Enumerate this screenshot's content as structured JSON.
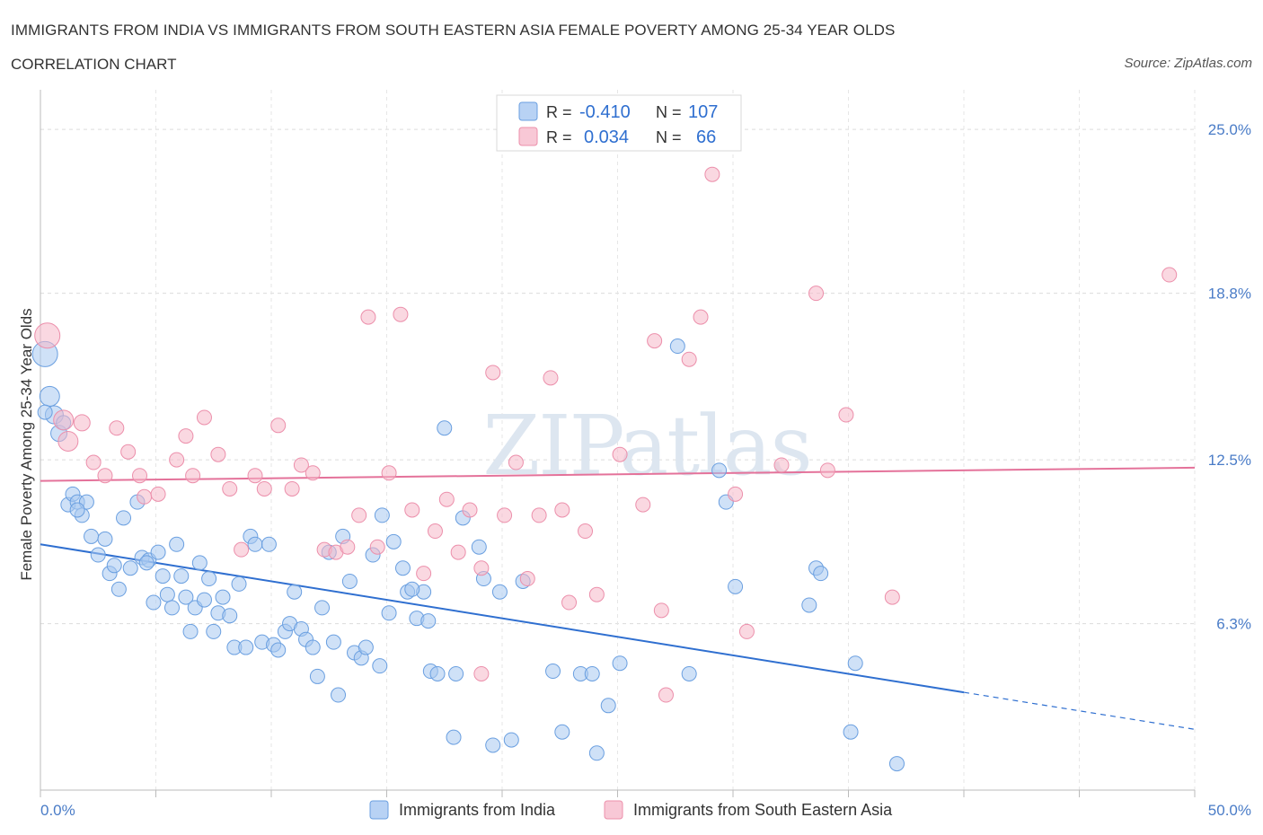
{
  "title": "IMMIGRANTS FROM INDIA VS IMMIGRANTS FROM SOUTH EASTERN ASIA FEMALE POVERTY AMONG 25-34 YEAR OLDS",
  "subtitle": "CORRELATION CHART",
  "source": "Source: ZipAtlas.com",
  "watermark": "ZIPatlas",
  "legend": {
    "rows": [
      {
        "r_label": "R =",
        "r_value": "-0.410",
        "n_label": "N =",
        "n_value": "107",
        "color": "#a8c8f0"
      },
      {
        "r_label": "R =",
        "r_value": "0.034",
        "n_label": "N =",
        "n_value": "66",
        "color": "#f5b8c8"
      }
    ]
  },
  "bottom_legend": [
    "Immigrants from India",
    "Immigrants from South Eastern Asia"
  ],
  "chart_data": {
    "type": "scatter",
    "title": "IMMIGRANTS FROM INDIA VS IMMIGRANTS FROM SOUTH EASTERN ASIA FEMALE POVERTY AMONG 25-34 YEAR OLDS",
    "xlabel": "",
    "ylabel": "Female Poverty Among 25-34 Year Olds",
    "xlim": [
      0,
      50
    ],
    "ylim": [
      0,
      26.5
    ],
    "x_tick_labels": [
      "0.0%",
      "50.0%"
    ],
    "y_ticks": [
      6.3,
      12.5,
      18.8,
      25.0
    ],
    "y_tick_labels": [
      "6.3%",
      "12.5%",
      "18.8%",
      "25.0%"
    ],
    "grid": true,
    "series": [
      {
        "name": "Immigrants from India",
        "color": "#a8c8f0",
        "stroke": "#6a9fe0",
        "trend": {
          "x0": 0,
          "y0": 9.3,
          "x1": 40,
          "y1": 3.7,
          "dash_to_x": 50,
          "dash_to_y": 2.3,
          "color": "#2f6fd0"
        },
        "points": [
          [
            0.2,
            16.5,
            14
          ],
          [
            0.4,
            14.9,
            11
          ],
          [
            0.6,
            14.2,
            10
          ],
          [
            0.8,
            13.5,
            9
          ],
          [
            1,
            13.9,
            8
          ],
          [
            1.2,
            10.8,
            8
          ],
          [
            1.4,
            11.2,
            8
          ],
          [
            1.6,
            10.9,
            8
          ],
          [
            1.8,
            10.4,
            8
          ],
          [
            2.0,
            10.9,
            8
          ],
          [
            2.2,
            9.6,
            8
          ],
          [
            2.5,
            8.9,
            8
          ],
          [
            2.8,
            9.5,
            8
          ],
          [
            3,
            8.2,
            8
          ],
          [
            3.2,
            8.5,
            8
          ],
          [
            3.4,
            7.6,
            8
          ],
          [
            3.6,
            10.3,
            8
          ],
          [
            3.9,
            8.4,
            8
          ],
          [
            4.2,
            10.9,
            8
          ],
          [
            4.4,
            8.8,
            8
          ],
          [
            4.7,
            8.7,
            8
          ],
          [
            4.9,
            7.1,
            8
          ],
          [
            5.1,
            9.0,
            8
          ],
          [
            5.3,
            8.1,
            8
          ],
          [
            5.5,
            7.4,
            8
          ],
          [
            5.7,
            6.9,
            8
          ],
          [
            5.9,
            9.3,
            8
          ],
          [
            6.1,
            8.1,
            8
          ],
          [
            6.3,
            7.3,
            8
          ],
          [
            6.5,
            6.0,
            8
          ],
          [
            6.7,
            6.9,
            8
          ],
          [
            6.9,
            8.6,
            8
          ],
          [
            7.1,
            7.2,
            8
          ],
          [
            7.3,
            8.0,
            8
          ],
          [
            7.5,
            6.0,
            8
          ],
          [
            7.7,
            6.7,
            8
          ],
          [
            7.9,
            7.3,
            8
          ],
          [
            8.2,
            6.6,
            8
          ],
          [
            8.4,
            5.4,
            8
          ],
          [
            8.6,
            7.8,
            8
          ],
          [
            8.9,
            5.4,
            8
          ],
          [
            9.1,
            9.6,
            8
          ],
          [
            9.3,
            9.3,
            8
          ],
          [
            9.6,
            5.6,
            8
          ],
          [
            9.9,
            9.3,
            8
          ],
          [
            10.1,
            5.5,
            8
          ],
          [
            10.3,
            5.3,
            8
          ],
          [
            10.6,
            6.0,
            8
          ],
          [
            10.8,
            6.3,
            8
          ],
          [
            11.0,
            7.5,
            8
          ],
          [
            11.3,
            6.1,
            8
          ],
          [
            11.5,
            5.7,
            8
          ],
          [
            11.8,
            5.4,
            8
          ],
          [
            12.0,
            4.3,
            8
          ],
          [
            12.2,
            6.9,
            8
          ],
          [
            12.5,
            9.0,
            8
          ],
          [
            12.7,
            5.6,
            8
          ],
          [
            12.9,
            3.6,
            8
          ],
          [
            13.1,
            9.6,
            8
          ],
          [
            13.4,
            7.9,
            8
          ],
          [
            13.6,
            5.2,
            8
          ],
          [
            13.9,
            5.0,
            8
          ],
          [
            14.1,
            5.4,
            8
          ],
          [
            14.4,
            8.9,
            8
          ],
          [
            14.7,
            4.7,
            8
          ],
          [
            14.8,
            10.4,
            8
          ],
          [
            15.1,
            6.7,
            8
          ],
          [
            15.3,
            9.4,
            8
          ],
          [
            15.7,
            8.4,
            8
          ],
          [
            15.9,
            7.5,
            8
          ],
          [
            16.3,
            6.5,
            8
          ],
          [
            16.6,
            7.5,
            8
          ],
          [
            16.8,
            6.4,
            8
          ],
          [
            16.9,
            4.5,
            8
          ],
          [
            17.2,
            4.4,
            8
          ],
          [
            17.5,
            13.7,
            8
          ],
          [
            17.9,
            2.0,
            8
          ],
          [
            18.0,
            4.4,
            8
          ],
          [
            18.3,
            10.3,
            8
          ],
          [
            19.0,
            9.2,
            8
          ],
          [
            19.2,
            8.0,
            8
          ],
          [
            19.6,
            1.7,
            8
          ],
          [
            19.9,
            7.5,
            8
          ],
          [
            20.4,
            1.9,
            8
          ],
          [
            20.9,
            7.9,
            8
          ],
          [
            22.2,
            4.5,
            8
          ],
          [
            22.6,
            2.2,
            8
          ],
          [
            23.4,
            4.4,
            8
          ],
          [
            23.9,
            4.4,
            8
          ],
          [
            24.1,
            1.4,
            8
          ],
          [
            24.6,
            3.2,
            8
          ],
          [
            25.1,
            4.8,
            8
          ],
          [
            27.6,
            16.8,
            8
          ],
          [
            28.1,
            4.4,
            8
          ],
          [
            29.4,
            12.1,
            8
          ],
          [
            29.7,
            10.9,
            8
          ],
          [
            30.1,
            7.7,
            8
          ],
          [
            33.3,
            7.0,
            8
          ],
          [
            33.6,
            8.4,
            8
          ],
          [
            33.8,
            8.2,
            8
          ],
          [
            35.3,
            4.8,
            8
          ],
          [
            35.1,
            2.2,
            8
          ],
          [
            37.1,
            1.0,
            8
          ],
          [
            0.2,
            14.3,
            8
          ],
          [
            1.6,
            10.6,
            8
          ],
          [
            4.6,
            8.6,
            8
          ],
          [
            16.1,
            7.6,
            8
          ]
        ]
      },
      {
        "name": "Immigrants from South Eastern Asia",
        "color": "#f5b8c8",
        "stroke": "#ec8fab",
        "trend": {
          "x0": 0,
          "y0": 11.7,
          "x1": 50,
          "y1": 12.2,
          "color": "#e4729a"
        },
        "points": [
          [
            0.3,
            17.2,
            14
          ],
          [
            1.0,
            14.0,
            11
          ],
          [
            1.2,
            13.2,
            11
          ],
          [
            1.8,
            13.9,
            9
          ],
          [
            2.3,
            12.4,
            8
          ],
          [
            2.8,
            11.9,
            8
          ],
          [
            3.3,
            13.7,
            8
          ],
          [
            3.8,
            12.8,
            8
          ],
          [
            4.3,
            11.9,
            8
          ],
          [
            4.5,
            11.1,
            8
          ],
          [
            5.1,
            11.2,
            8
          ],
          [
            5.9,
            12.5,
            8
          ],
          [
            6.3,
            13.4,
            8
          ],
          [
            6.6,
            11.9,
            8
          ],
          [
            7.1,
            14.1,
            8
          ],
          [
            7.7,
            12.7,
            8
          ],
          [
            8.2,
            11.4,
            8
          ],
          [
            8.7,
            9.1,
            8
          ],
          [
            9.3,
            11.9,
            8
          ],
          [
            9.7,
            11.4,
            8
          ],
          [
            10.3,
            13.8,
            8
          ],
          [
            10.9,
            11.4,
            8
          ],
          [
            11.3,
            12.3,
            8
          ],
          [
            11.8,
            12.0,
            8
          ],
          [
            12.3,
            9.1,
            8
          ],
          [
            12.8,
            9.0,
            8
          ],
          [
            13.3,
            9.2,
            8
          ],
          [
            13.8,
            10.4,
            8
          ],
          [
            14.2,
            17.9,
            8
          ],
          [
            14.6,
            9.2,
            8
          ],
          [
            15.1,
            12.0,
            8
          ],
          [
            15.6,
            18.0,
            8
          ],
          [
            16.1,
            10.6,
            8
          ],
          [
            16.6,
            8.2,
            8
          ],
          [
            17.1,
            9.8,
            8
          ],
          [
            17.6,
            11.0,
            8
          ],
          [
            18.1,
            9.0,
            8
          ],
          [
            18.6,
            10.6,
            8
          ],
          [
            19.1,
            8.4,
            8
          ],
          [
            19.6,
            15.8,
            8
          ],
          [
            20.1,
            10.4,
            8
          ],
          [
            20.6,
            12.4,
            8
          ],
          [
            21.1,
            8.0,
            8
          ],
          [
            21.6,
            10.4,
            8
          ],
          [
            22.1,
            15.6,
            8
          ],
          [
            22.6,
            10.6,
            8
          ],
          [
            22.9,
            7.1,
            8
          ],
          [
            23.6,
            9.8,
            8
          ],
          [
            24.1,
            7.4,
            8
          ],
          [
            25.1,
            12.7,
            8
          ],
          [
            26.1,
            10.8,
            8
          ],
          [
            26.6,
            17.0,
            8
          ],
          [
            26.9,
            6.8,
            8
          ],
          [
            27.1,
            3.6,
            8
          ],
          [
            28.1,
            16.3,
            8
          ],
          [
            28.6,
            17.9,
            8
          ],
          [
            29.1,
            23.3,
            8
          ],
          [
            30.1,
            11.2,
            8
          ],
          [
            30.6,
            6.0,
            8
          ],
          [
            32.1,
            12.3,
            8
          ],
          [
            33.6,
            18.8,
            8
          ],
          [
            34.1,
            12.1,
            8
          ],
          [
            34.9,
            14.2,
            8
          ],
          [
            36.9,
            7.3,
            8
          ],
          [
            48.9,
            19.5,
            8
          ],
          [
            19.1,
            4.4,
            8
          ]
        ]
      }
    ]
  }
}
